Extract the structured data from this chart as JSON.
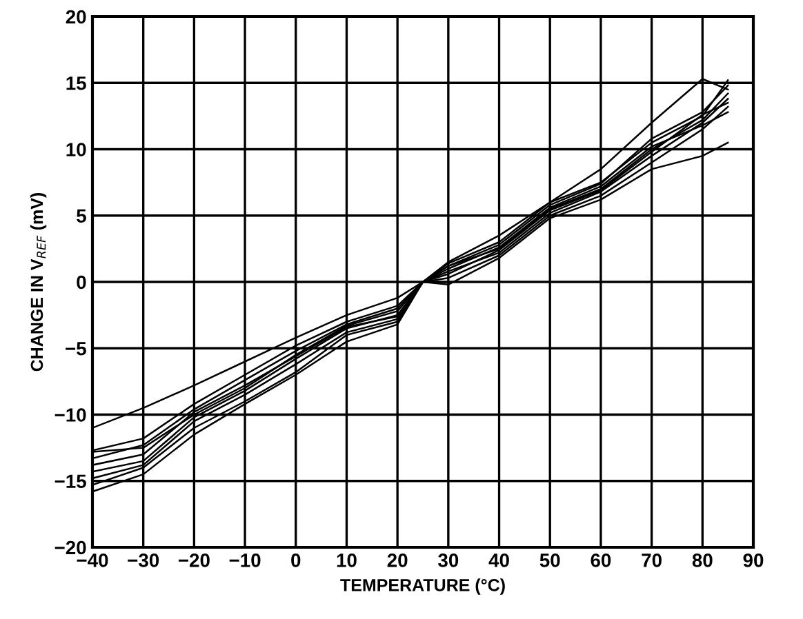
{
  "chart_data": {
    "type": "line",
    "xlabel": "TEMPERATURE (°C)",
    "ylabel": "CHANGE IN V$_{REF}$ (mV)",
    "xlim": [
      -40,
      90
    ],
    "ylim": [
      -20,
      20
    ],
    "xticks": [
      {
        "value": -40,
        "label": "−40"
      },
      {
        "value": -30,
        "label": "−30"
      },
      {
        "value": -20,
        "label": "−20"
      },
      {
        "value": -10,
        "label": "−10"
      },
      0,
      10,
      20,
      30,
      40,
      50,
      60,
      70,
      80,
      90
    ],
    "yticks": [
      {
        "value": -20,
        "label": "−20"
      },
      {
        "value": -15,
        "label": "−15"
      },
      {
        "value": -10,
        "label": "−10"
      },
      {
        "value": -5,
        "label": "−5"
      },
      0,
      5,
      10,
      15,
      20
    ],
    "grid": true,
    "legend": false,
    "marker": "none",
    "line_style": "solid",
    "x": [
      -40,
      -30,
      -20,
      -10,
      0,
      10,
      20,
      25,
      30,
      40,
      50,
      60,
      70,
      80,
      85
    ],
    "series": [
      {
        "color": "#000000",
        "values": [
          -11,
          -9.5,
          -7.8,
          -6,
          -4.2,
          -2.5,
          -1.2,
          0,
          1.5,
          3.5,
          6,
          8.5,
          12,
          15.3,
          14.5
        ]
      },
      {
        "color": "#000000",
        "values": [
          -12.7,
          -11.8,
          -9.2,
          -7,
          -4.8,
          -3,
          -1.8,
          0,
          1.4,
          3,
          6,
          7.5,
          10.5,
          12.5,
          15.2
        ]
      },
      {
        "color": "#000000",
        "values": [
          -13.3,
          -12.3,
          -9.6,
          -7.4,
          -5.2,
          -3.2,
          -2,
          0,
          1.2,
          2.8,
          5.8,
          7.4,
          10.8,
          12.8,
          14.8
        ]
      },
      {
        "color": "#000000",
        "values": [
          -14.3,
          -13.5,
          -10.2,
          -8.2,
          -5.8,
          -3.5,
          -2.5,
          0,
          1.2,
          2.5,
          5.5,
          7,
          10,
          12.2,
          14.2
        ]
      },
      {
        "color": "#000000",
        "values": [
          -14.8,
          -13.8,
          -10.5,
          -8.5,
          -6.2,
          -3.8,
          -2.8,
          0,
          0.8,
          2.2,
          5.2,
          6.8,
          9.5,
          12,
          13.8
        ]
      },
      {
        "color": "#000000",
        "values": [
          -15.3,
          -14,
          -11,
          -9,
          -6.8,
          -4,
          -3,
          0,
          0.3,
          2,
          5,
          6.5,
          9,
          11.5,
          13.2
        ]
      },
      {
        "color": "#000000",
        "values": [
          -15.8,
          -14.5,
          -11.5,
          -9.2,
          -7,
          -4.5,
          -3.2,
          0,
          -0.2,
          1.8,
          4.8,
          6.2,
          8.5,
          9.5,
          10.5
        ]
      },
      {
        "color": "#000000",
        "values": [
          -12.8,
          -12.5,
          -10,
          -8,
          -5.5,
          -3.3,
          -2.2,
          0,
          1,
          2.6,
          5.6,
          7.2,
          10.2,
          11.8,
          12.8
        ]
      },
      {
        "color": "#000000",
        "values": [
          -13.8,
          -13,
          -9.8,
          -7.8,
          -5.6,
          -3.4,
          -2.6,
          0,
          0.6,
          2.4,
          5.4,
          6.9,
          9.8,
          12.6,
          13.5
        ]
      }
    ]
  }
}
